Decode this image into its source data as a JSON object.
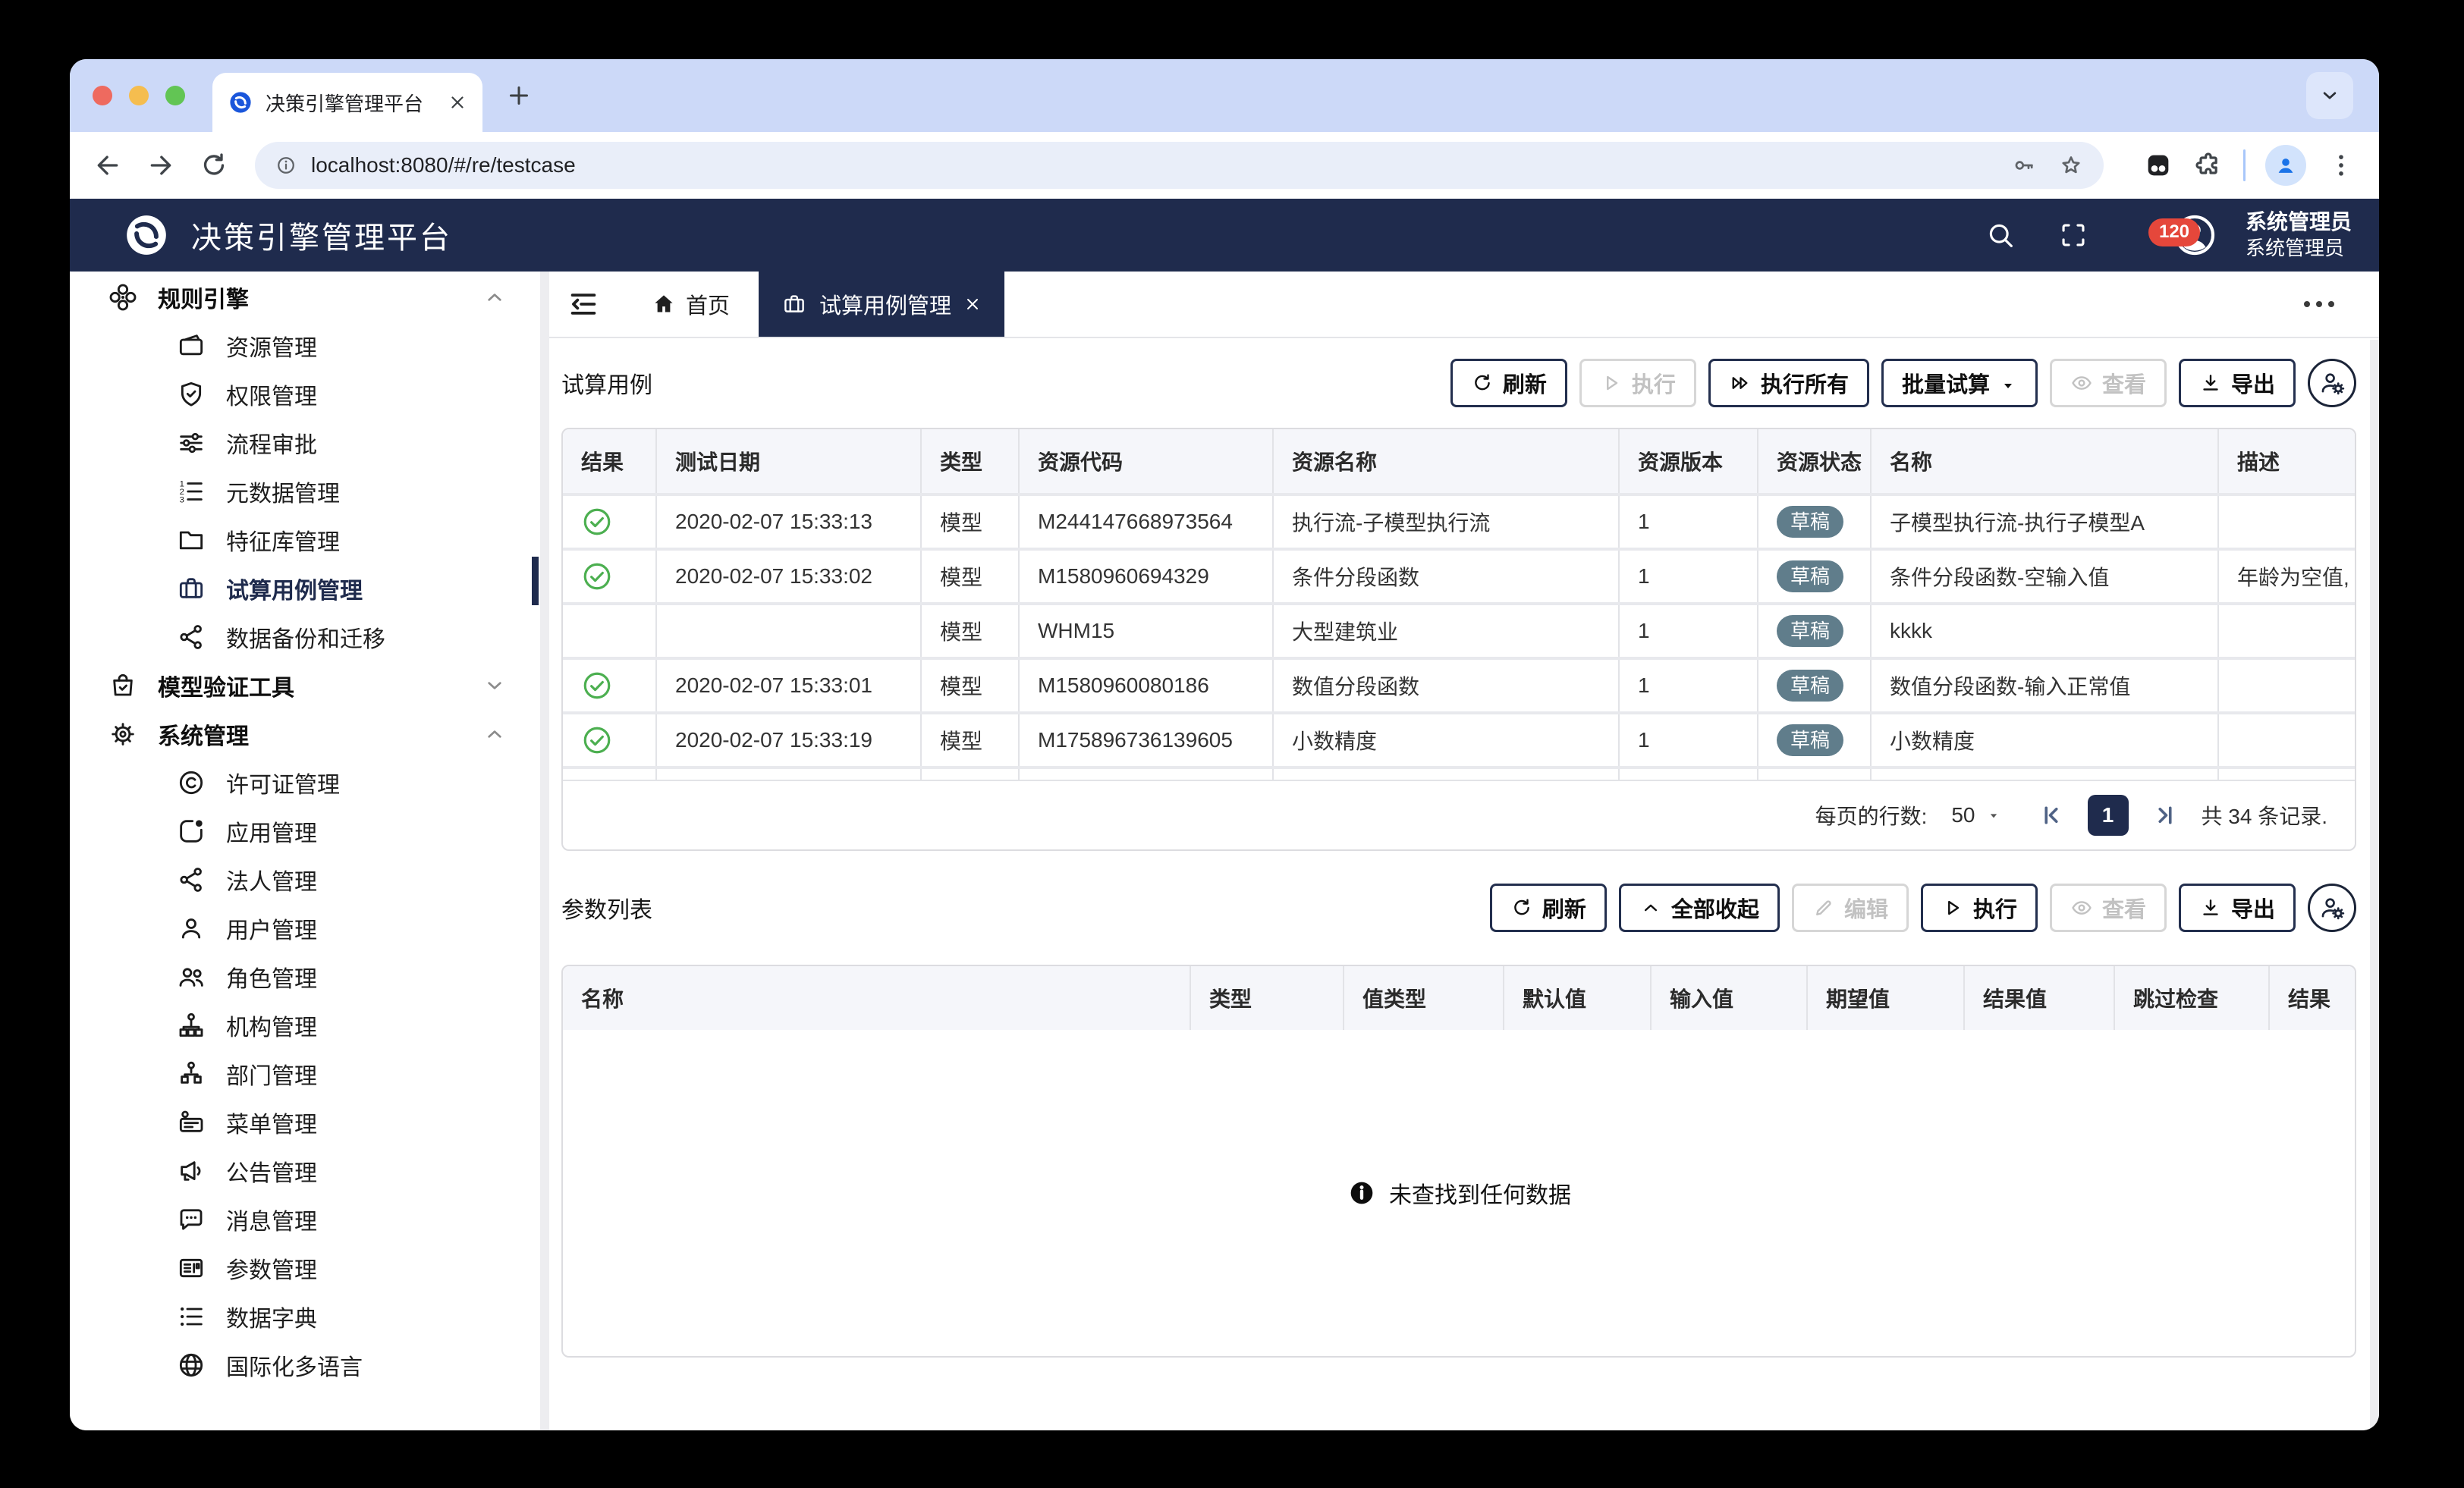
{
  "colors": {
    "accent": "#1f2b4d",
    "status_badge": "#607d8b",
    "success": "#4caf50",
    "notification_badge": "#e5473b",
    "tabstrip": "#ccd9f8"
  },
  "browser": {
    "tab_title": "决策引擎管理平台",
    "url": "localhost:8080/#/re/testcase"
  },
  "appbar": {
    "title": "决策引擎管理平台",
    "badge_count": "120",
    "user_name": "系统管理员",
    "user_role": "系统管理员"
  },
  "sidebar": {
    "items": [
      {
        "type": "group",
        "icon": "clover-icon",
        "label": "规则引擎",
        "chevron": "up"
      },
      {
        "type": "item",
        "icon": "wallet-icon",
        "label": "资源管理"
      },
      {
        "type": "item",
        "icon": "shield-check-icon",
        "label": "权限管理"
      },
      {
        "type": "item",
        "icon": "sliders-icon",
        "label": "流程审批"
      },
      {
        "type": "item",
        "icon": "numbered-list-icon",
        "label": "元数据管理"
      },
      {
        "type": "item",
        "icon": "folder-icon",
        "label": "特征库管理"
      },
      {
        "type": "item",
        "icon": "briefcase-icon",
        "label": "试算用例管理",
        "selected": true
      },
      {
        "type": "item",
        "icon": "share-nodes-icon",
        "label": "数据备份和迁移"
      },
      {
        "type": "group",
        "icon": "bag-check-icon",
        "label": "模型验证工具",
        "chevron": "down"
      },
      {
        "type": "group",
        "icon": "gear-icon",
        "label": "系统管理",
        "chevron": "up"
      },
      {
        "type": "item",
        "icon": "copyright-icon",
        "label": "许可证管理"
      },
      {
        "type": "item",
        "icon": "app-icon",
        "label": "应用管理"
      },
      {
        "type": "item",
        "icon": "share-nodes-icon",
        "label": "法人管理"
      },
      {
        "type": "item",
        "icon": "user-icon",
        "label": "用户管理"
      },
      {
        "type": "item",
        "icon": "users-icon",
        "label": "角色管理"
      },
      {
        "type": "item",
        "icon": "org-tree-icon",
        "label": "机构管理"
      },
      {
        "type": "item",
        "icon": "dept-icon",
        "label": "部门管理"
      },
      {
        "type": "item",
        "icon": "menu-card-icon",
        "label": "菜单管理"
      },
      {
        "type": "item",
        "icon": "megaphone-icon",
        "label": "公告管理"
      },
      {
        "type": "item",
        "icon": "chat-icon",
        "label": "消息管理"
      },
      {
        "type": "item",
        "icon": "param-card-icon",
        "label": "参数管理"
      },
      {
        "type": "item",
        "icon": "dict-list-icon",
        "label": "数据字典"
      },
      {
        "type": "item",
        "icon": "globe-icon",
        "label": "国际化多语言"
      }
    ]
  },
  "tabs": {
    "home": "首页",
    "active": "试算用例管理"
  },
  "testcase": {
    "title": "试算用例",
    "buttons": [
      {
        "name": "refresh",
        "label": "刷新",
        "icon": "refresh-icon",
        "state": "enabled"
      },
      {
        "name": "execute",
        "label": "执行",
        "icon": "play-icon",
        "state": "disabled"
      },
      {
        "name": "execute-all",
        "label": "执行所有",
        "icon": "play-all-icon",
        "state": "enabled"
      },
      {
        "name": "batch-test",
        "label": "批量试算",
        "icon": "",
        "state": "enabled",
        "caret": true
      },
      {
        "name": "view",
        "label": "查看",
        "icon": "eye-icon",
        "state": "disabled"
      },
      {
        "name": "export",
        "label": "导出",
        "icon": "download-icon",
        "state": "enabled"
      }
    ],
    "columns": [
      "结果",
      "测试日期",
      "类型",
      "资源代码",
      "资源名称",
      "资源版本",
      "资源状态",
      "名称",
      "描述"
    ],
    "rows": [
      {
        "result": "pass",
        "date": "2020-02-07 15:33:13",
        "type": "模型",
        "code": "M244147668973564",
        "res_name": "执行流-子模型执行流",
        "version": "1",
        "status": "草稿",
        "name": "子模型执行流-执行子模型A",
        "desc": ""
      },
      {
        "result": "pass",
        "date": "2020-02-07 15:33:02",
        "type": "模型",
        "code": "M1580960694329",
        "res_name": "条件分段函数",
        "version": "1",
        "status": "草稿",
        "name": "条件分段函数-空输入值",
        "desc": "年龄为空值, ..."
      },
      {
        "result": "",
        "date": "",
        "type": "模型",
        "code": "WHM15",
        "res_name": "大型建筑业",
        "version": "1",
        "status": "草稿",
        "name": "kkkk",
        "desc": ""
      },
      {
        "result": "pass",
        "date": "2020-02-07 15:33:01",
        "type": "模型",
        "code": "M1580960080186",
        "res_name": "数值分段函数",
        "version": "1",
        "status": "草稿",
        "name": "数值分段函数-输入正常值",
        "desc": ""
      },
      {
        "result": "pass",
        "date": "2020-02-07 15:33:19",
        "type": "模型",
        "code": "M175896736139605",
        "res_name": "小数精度",
        "version": "1",
        "status": "草稿",
        "name": "小数精度",
        "desc": ""
      }
    ],
    "pagination": {
      "rows_per_page_label": "每页的行数:",
      "rows_per_page": "50",
      "page": "1",
      "total": "共 34 条记录."
    }
  },
  "params": {
    "title": "参数列表",
    "buttons": [
      {
        "name": "refresh",
        "label": "刷新",
        "icon": "refresh-icon",
        "state": "enabled"
      },
      {
        "name": "collapse-all",
        "label": "全部收起",
        "icon": "chevron-up-icon",
        "state": "enabled"
      },
      {
        "name": "edit",
        "label": "编辑",
        "icon": "pencil-icon",
        "state": "disabled"
      },
      {
        "name": "execute",
        "label": "执行",
        "icon": "play-icon",
        "state": "enabled"
      },
      {
        "name": "view",
        "label": "查看",
        "icon": "eye-icon",
        "state": "disabled"
      },
      {
        "name": "export",
        "label": "导出",
        "icon": "download-icon",
        "state": "enabled"
      }
    ],
    "columns": [
      "名称",
      "类型",
      "值类型",
      "默认值",
      "输入值",
      "期望值",
      "结果值",
      "跳过检查",
      "结果"
    ],
    "empty_text": "未查找到任何数据"
  }
}
